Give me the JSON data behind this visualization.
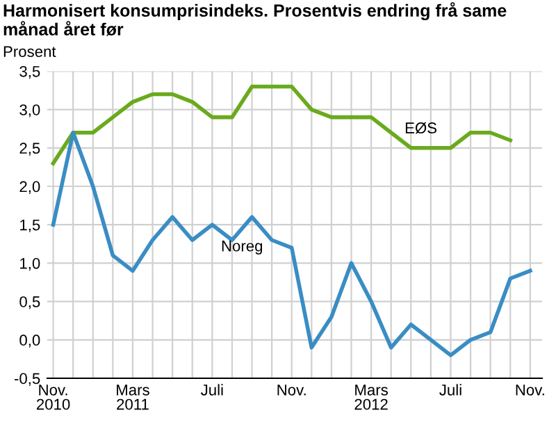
{
  "chart_data": {
    "type": "line",
    "title": "Harmonisert konsumprisindeks. Prosentvis endring frå same månad året før",
    "ylabel": "Prosent",
    "categories": [
      "Nov.\n2010",
      null,
      null,
      null,
      "Mars\n2011",
      null,
      null,
      null,
      "Juli",
      null,
      null,
      null,
      "Nov.",
      null,
      null,
      null,
      "Mars\n2012",
      null,
      null,
      null,
      "Juli",
      null,
      null,
      null,
      "Nov."
    ],
    "series": [
      {
        "name": "EØS",
        "color": "#6aaa1e",
        "values": [
          2.3,
          2.7,
          2.7,
          2.9,
          3.1,
          3.2,
          3.2,
          3.1,
          2.9,
          2.9,
          3.3,
          3.3,
          3.3,
          3.0,
          2.9,
          2.9,
          2.9,
          2.7,
          2.5,
          2.5,
          2.5,
          2.7,
          2.7,
          2.6,
          null
        ]
      },
      {
        "name": "Noreg",
        "color": "#3a8dc4",
        "values": [
          1.5,
          2.7,
          2.0,
          1.1,
          0.9,
          1.3,
          1.6,
          1.3,
          1.5,
          1.3,
          1.6,
          1.3,
          1.2,
          -0.1,
          0.3,
          1.0,
          0.5,
          -0.1,
          0.2,
          0.0,
          -0.2,
          0.0,
          0.1,
          0.8,
          0.9
        ]
      }
    ],
    "ylim": [
      -0.5,
      3.5
    ],
    "yticks": [
      {
        "value": -0.5,
        "label": "-0,5"
      },
      {
        "value": 0,
        "label": "0,0"
      },
      {
        "value": 0.5,
        "label": "0,5"
      },
      {
        "value": 1,
        "label": "1,0"
      },
      {
        "value": 1.5,
        "label": "1,5"
      },
      {
        "value": 2,
        "label": "2,0"
      },
      {
        "value": 2.5,
        "label": "2,5"
      },
      {
        "value": 3,
        "label": "3,0"
      },
      {
        "value": 3.5,
        "label": "3,5"
      }
    ],
    "grid": true,
    "marker": "none",
    "line_style": "solid"
  }
}
